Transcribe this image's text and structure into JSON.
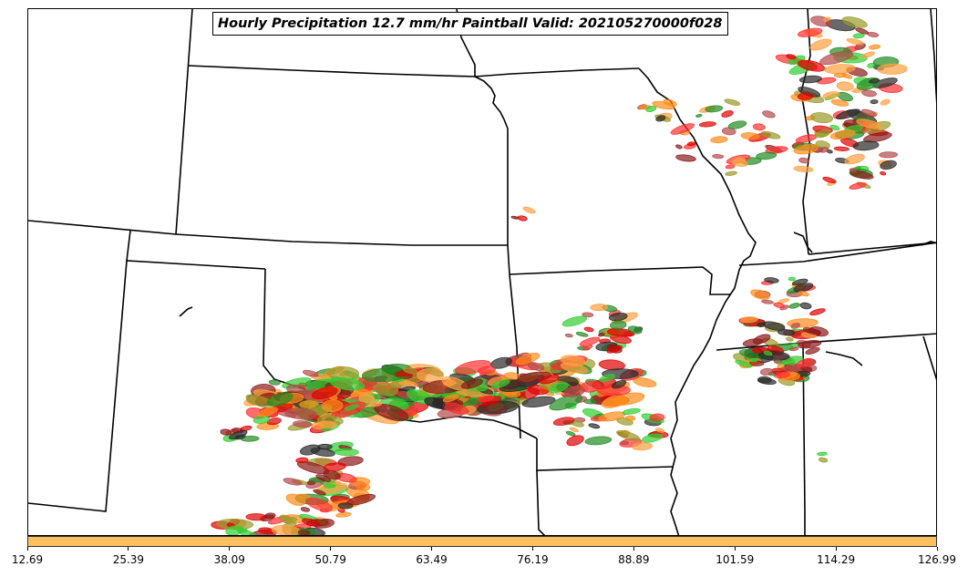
{
  "title": "Hourly Precipitation 12.7 mm/hr Paintball Valid: 202105270000f028",
  "colorbar": {
    "color": "#ffc05f",
    "ticks": [
      "12.69",
      "25.39",
      "38.09",
      "50.79",
      "63.49",
      "76.19",
      "88.89",
      "101.59",
      "114.29",
      "126.99"
    ]
  },
  "member_colors": [
    "#228b22",
    "#32cd32",
    "#9a9a2a",
    "#ff8c1a",
    "#ff3030",
    "#8b1a1a",
    "#b44a4a",
    "#2a2a2a",
    "#ffa040",
    "#e00000"
  ]
}
